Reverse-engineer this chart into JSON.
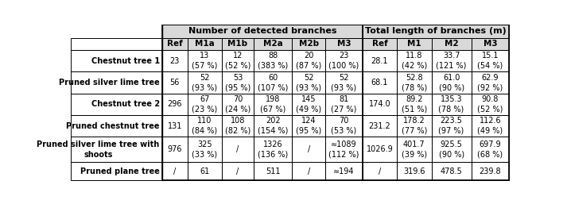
{
  "col_group1_label": "Number of detected branches",
  "col_group2_label": "Total length of branches (m)",
  "header_labels": [
    "Ref",
    "M1a",
    "M1b",
    "M2a",
    "M2b",
    "M3",
    "Ref",
    "M1",
    "M2",
    "M3"
  ],
  "rows": [
    {
      "label": "Chestnut tree 1",
      "cells": [
        "23",
        "13\n(57 %)",
        "12\n(52 %)",
        "88\n(383 %)",
        "20\n(87 %)",
        "23\n(100 %)",
        "28.1",
        "11.8\n(42 %)",
        "33.7\n(121 %)",
        "15.1\n(54 %)"
      ]
    },
    {
      "label": "Pruned silver lime tree",
      "cells": [
        "56",
        "52\n(93 %)",
        "53\n(95 %)",
        "60\n(107 %)",
        "52\n(93 %)",
        "52\n(93 %)",
        "68.1",
        "52.8\n(78 %)",
        "61.0\n(90 %)",
        "62.9\n(92 %)"
      ]
    },
    {
      "label": "Chestnut tree 2",
      "cells": [
        "296",
        "67\n(23 %)",
        "70\n(24 %)",
        "198\n(67 %)",
        "145\n(49 %)",
        "81\n(27 %)",
        "174.0",
        "89.2\n(51 %)",
        "135.3\n(78 %)",
        "90.8\n(52 %)"
      ]
    },
    {
      "label": "Pruned chestnut tree",
      "cells": [
        "131",
        "110\n(84 %)",
        "108\n(82 %)",
        "202\n(154 %)",
        "124\n(95 %)",
        "70\n(53 %)",
        "231.2",
        "178.2\n(77 %)",
        "223.5\n(97 %)",
        "112.6\n(49 %)"
      ]
    },
    {
      "label": "Pruned silver lime tree with\nshoots",
      "cells": [
        "976",
        "325\n(33 %)",
        "/",
        "1326\n(136 %)",
        "/",
        "≈1089\n(112 %)",
        "1026.9",
        "401.7\n(39 %)",
        "925.5\n(90 %)",
        "697.9\n(68 %)"
      ]
    },
    {
      "label": "Pruned plane tree",
      "cells": [
        "/",
        "61",
        "/",
        "511",
        "/",
        "≈194",
        "/",
        "319.6",
        "478.5",
        "239.8"
      ]
    }
  ],
  "header_bg": "#d9d9d9",
  "font_size": 7.0,
  "header_font_size": 7.5,
  "group_header_font_size": 8.0
}
